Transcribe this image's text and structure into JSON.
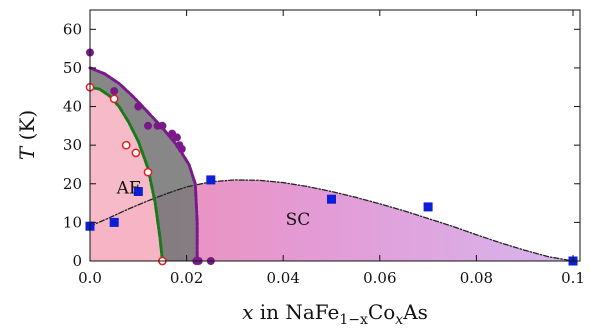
{
  "chart_data": {
    "type": "scatter",
    "x_axis": {
      "label_math": "x",
      "label_text": " in NaFe",
      "label_sub": "1−x",
      "label_text2": "Co",
      "label_sub2": "x",
      "label_text3": "As",
      "range": [
        0,
        0.1
      ],
      "ticks": [
        0.0,
        0.02,
        0.04,
        0.06,
        0.08,
        0.1
      ],
      "tick_labels": [
        "0.0",
        "0.02",
        "0.04",
        "0.06",
        "0.08",
        "0.1"
      ]
    },
    "y_axis": {
      "label_math": "T",
      "label_text": " (K)",
      "range": [
        0,
        65
      ],
      "ticks": [
        0,
        10,
        20,
        30,
        40,
        50,
        60
      ],
      "tick_labels": [
        "0",
        "10",
        "20",
        "30",
        "40",
        "50",
        "60"
      ]
    },
    "grid": false,
    "regions": [
      {
        "label": "AF",
        "color": "#f7b6c5",
        "label_x": 0.0055,
        "label_y": 17.5
      },
      {
        "label": "SC",
        "color": "#d88fd8",
        "label_x": 0.0405,
        "label_y": 9.3
      }
    ],
    "series": [
      {
        "marker": "square",
        "color": "#0a1fd6",
        "x": [
          0.0,
          0.005,
          0.01,
          0.025,
          0.05,
          0.07,
          0.1
        ],
        "y": [
          9,
          10,
          18,
          21,
          16,
          14,
          0
        ]
      },
      {
        "marker": "filled-circle",
        "color": "#7a1a8a",
        "x": [
          0.0,
          0.005,
          0.01,
          0.012,
          0.014,
          0.015,
          0.017,
          0.018,
          0.0185,
          0.019,
          0.022,
          0.0225,
          0.025
        ],
        "y": [
          54,
          44,
          40,
          35,
          35,
          35,
          33,
          32,
          30,
          29,
          0,
          0,
          0
        ]
      },
      {
        "marker": "open-circle",
        "color": "#e02020",
        "x": [
          0.0,
          0.005,
          0.0075,
          0.0095,
          0.012,
          0.015
        ],
        "y": [
          45,
          42,
          30,
          28,
          23,
          0
        ]
      }
    ],
    "curves": [
      {
        "name": "sc-dome",
        "style": "dash-dot",
        "color": "#222222",
        "x": [
          0.0,
          0.004,
          0.008,
          0.012,
          0.016,
          0.02,
          0.025,
          0.03,
          0.035,
          0.04,
          0.045,
          0.05,
          0.055,
          0.06,
          0.065,
          0.07,
          0.075,
          0.08,
          0.085,
          0.09,
          0.095,
          0.1
        ],
        "y": [
          9,
          11.2,
          13.5,
          15.6,
          17.5,
          19.2,
          20.5,
          21,
          20.9,
          20.3,
          19.3,
          18,
          16.5,
          14.8,
          13,
          11,
          9,
          6.8,
          4.7,
          2.8,
          1.1,
          0
        ]
      },
      {
        "name": "af-boundary",
        "style": "dash-dot",
        "color": "#1a7a1a",
        "x": [
          0.0,
          0.002,
          0.004,
          0.006,
          0.008,
          0.01,
          0.012,
          0.0135,
          0.0145,
          0.015
        ],
        "y": [
          45,
          44.5,
          42.8,
          40,
          36,
          31,
          24,
          15,
          6,
          0
        ]
      },
      {
        "name": "upper-boundary",
        "style": "dash-dot",
        "color": "#7a1a8a",
        "x": [
          0.0,
          0.003,
          0.006,
          0.009,
          0.012,
          0.015,
          0.018,
          0.0205,
          0.0218,
          0.0222,
          0.0222
        ],
        "y": [
          50,
          48.5,
          46,
          42.5,
          38.5,
          34.5,
          30,
          25,
          20,
          10,
          0
        ]
      }
    ]
  }
}
